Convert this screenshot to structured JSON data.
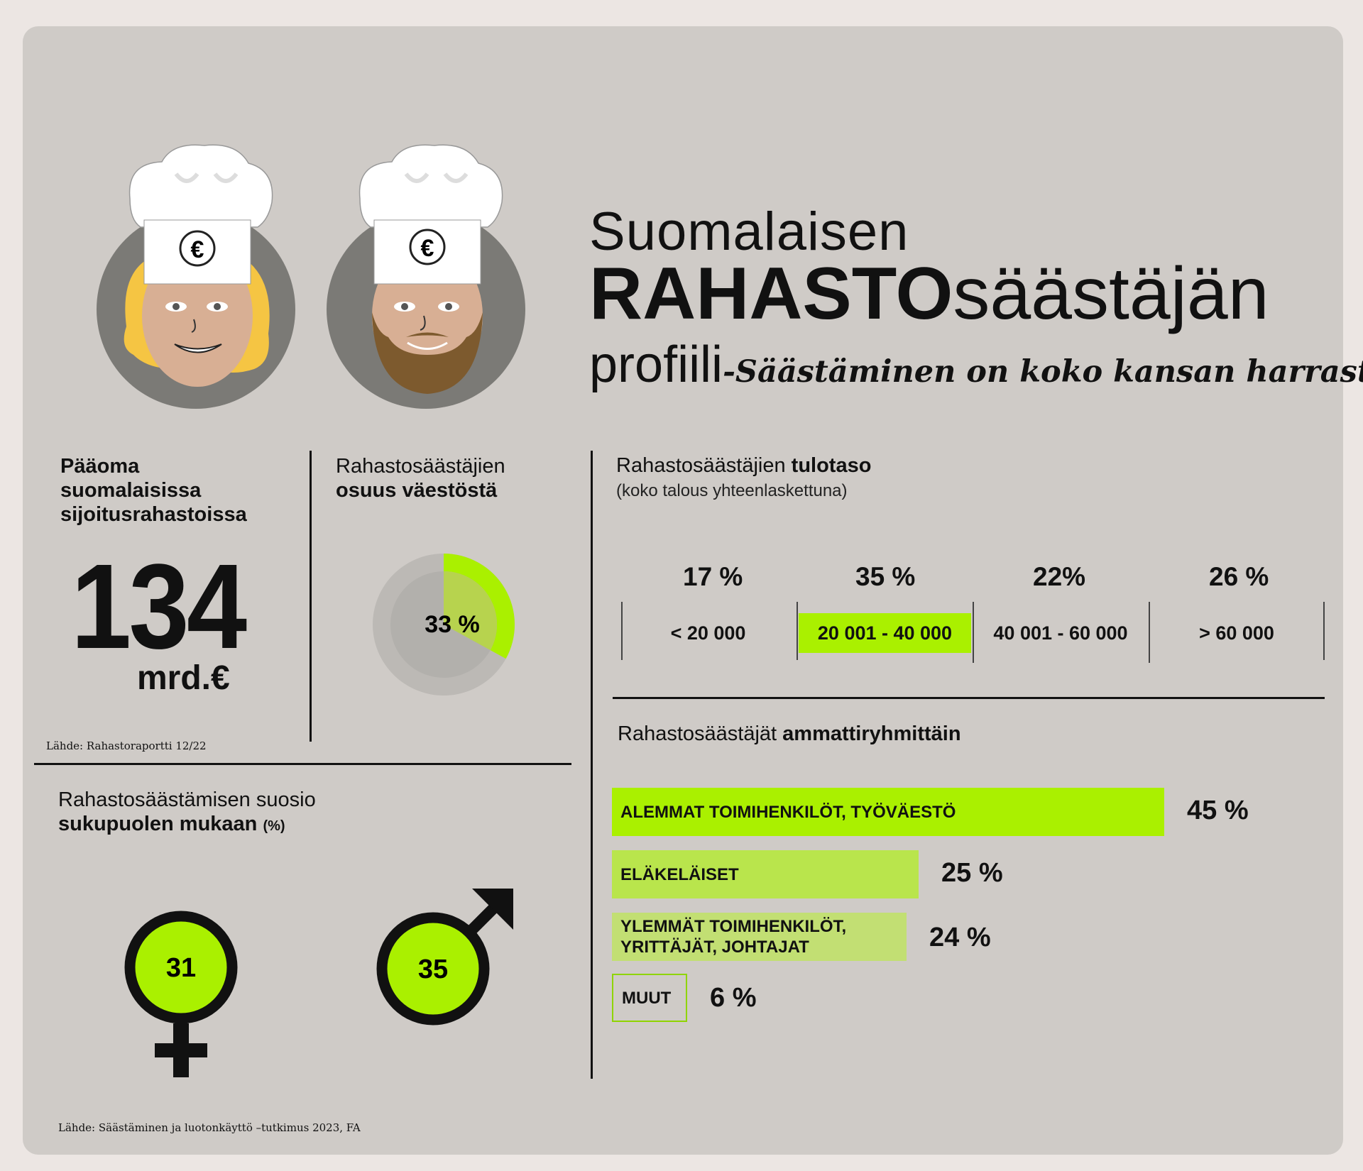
{
  "title": {
    "line1": "Suomalaisen",
    "line2_bold": "RAHASTO",
    "line2_normal": "säästäjän",
    "line3": "profiili",
    "tagline": "-Säästäminen on koko kansan harrastus!"
  },
  "avatars": {
    "hat_symbol": "€",
    "female": "female-chef-avatar",
    "male": "male-chef-avatar"
  },
  "capital": {
    "heading": [
      "Pääoma",
      "suomalaisissa",
      "sijoitusrahastoissa"
    ],
    "value": "134",
    "unit": "mrd.€",
    "source": "Lähde: Rahastoraportti 12/22"
  },
  "share": {
    "heading_line1": "Rahastosäästäjien",
    "heading_line2": "osuus väestöstä",
    "value": 33,
    "label": "33 %",
    "color": "#aaf000"
  },
  "income": {
    "heading_normal": "Rahastosäästäjien ",
    "heading_bold": "tulotaso",
    "subheading": "(koko talous yhteenlaskettuna)",
    "groups": [
      {
        "pct": "17 %",
        "range": "< 20 000",
        "highlight": false
      },
      {
        "pct": "35 %",
        "range": "20 001 - 40 000",
        "highlight": true
      },
      {
        "pct": "22%",
        "range": "40 001 - 60 000",
        "highlight": false
      },
      {
        "pct": "26 %",
        "range": "> 60 000",
        "highlight": false
      }
    ]
  },
  "occupation": {
    "heading_normal": "Rahastosäästäjät ",
    "heading_bold": "ammattiryhmittäin",
    "rows": [
      {
        "label": "ALEMMAT TOIMIHENKILÖT, TYÖVÄESTÖ",
        "value": 45,
        "pct": "45 %",
        "color": "#aaf000"
      },
      {
        "label": "ELÄKELÄISET",
        "value": 25,
        "pct": "25 %",
        "color": "#b9e54c"
      },
      {
        "label": "YLEMMÄT TOIMIHENKILÖT, YRITTÄJÄT, JOHTAJAT",
        "value": 24,
        "pct": "24 %",
        "color": "#c2df73"
      },
      {
        "label": "MUUT",
        "value": 6,
        "pct": "6 %",
        "color": "outline"
      }
    ]
  },
  "gender": {
    "heading_line1": "Rahastosäästämisen suosio",
    "heading_line2": "sukupuolen mukaan",
    "unit": "(%)",
    "female": "31",
    "male": "35",
    "color": "#aaf000"
  },
  "footer_source": "Lähde: Säästäminen ja luotonkäyttö  –tutkimus 2023, FA"
}
